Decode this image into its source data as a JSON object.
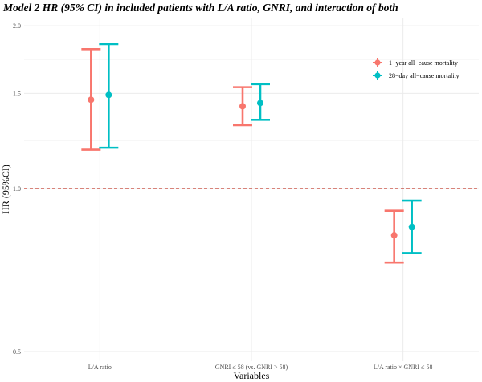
{
  "title": "Model 2 HR (95% CI) in included patients with L/A ratio, GNRI, and interaction of both",
  "chart_data": {
    "type": "errorbar",
    "xlabel": "Variables",
    "ylabel": "HR (95%CI)",
    "categories": [
      "L/A ratio",
      "GNRI ≤ 58 (vs. GNRI > 58)",
      "L/A ratio × GNRI ≤ 58"
    ],
    "y_ticks": [
      0.5,
      1.0,
      1.5,
      2.0
    ],
    "y_tick_labels": [
      "0.5",
      "1.0",
      "1.5",
      "2.0"
    ],
    "ylim": [
      0.48,
      2.07
    ],
    "y_scale": "log",
    "reference_line": {
      "y": 1.0,
      "style": "dashed",
      "color": "#C0392B"
    },
    "grid": true,
    "legend_position": "top-right",
    "series": [
      {
        "name": "1−year all−cause mortality",
        "color": "#F8766D",
        "points": [
          {
            "category": "L/A ratio",
            "hr": 1.46,
            "lower": 1.18,
            "upper": 1.81
          },
          {
            "category": "GNRI ≤ 58 (vs. GNRI > 58)",
            "hr": 1.42,
            "lower": 1.31,
            "upper": 1.54
          },
          {
            "category": "L/A ratio × GNRI ≤ 58",
            "hr": 0.82,
            "lower": 0.73,
            "upper": 0.91
          }
        ]
      },
      {
        "name": "28−day all−cause mortality",
        "color": "#00BFC4",
        "points": [
          {
            "category": "L/A ratio",
            "hr": 1.49,
            "lower": 1.19,
            "upper": 1.85
          },
          {
            "category": "GNRI ≤ 58 (vs. GNRI > 58)",
            "hr": 1.44,
            "lower": 1.34,
            "upper": 1.56
          },
          {
            "category": "L/A ratio × GNRI ≤ 58",
            "hr": 0.85,
            "lower": 0.76,
            "upper": 0.95
          }
        ]
      }
    ]
  }
}
